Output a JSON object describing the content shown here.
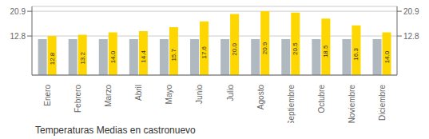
{
  "chart_data": {
    "type": "bar",
    "title": "Temperaturas Medias en castronuevo",
    "categories": [
      "Enero",
      "Febrero",
      "Marzo",
      "Abril",
      "Mayo",
      "Junio",
      "Julio",
      "Agosto",
      "Septiembre",
      "Octubre",
      "Noviembre",
      "Diciembre"
    ],
    "series": [
      {
        "color": "#B0B8C0",
        "values": [
          11.8,
          11.8,
          11.8,
          11.8,
          11.8,
          11.8,
          11.8,
          11.8,
          11.8,
          11.8,
          11.8,
          11.8
        ]
      },
      {
        "color": "#FFD700",
        "values": [
          12.8,
          13.2,
          14.0,
          14.4,
          15.7,
          17.6,
          20.0,
          20.9,
          20.5,
          18.5,
          16.3,
          14.0
        ],
        "data_labels": true,
        "value_labels": [
          "12.8",
          "13.2",
          "14.0",
          "14.4",
          "15.7",
          "17.6",
          "20.0",
          "20.9",
          "20.5",
          "18.5",
          "16.3",
          "14.0"
        ]
      }
    ],
    "ylim": [
      0,
      22.5
    ],
    "yticks": [
      12.8,
      20.9
    ],
    "y2lim": [
      0,
      22.5
    ],
    "y2ticks": [
      12.8,
      20.9
    ],
    "grid": true
  }
}
